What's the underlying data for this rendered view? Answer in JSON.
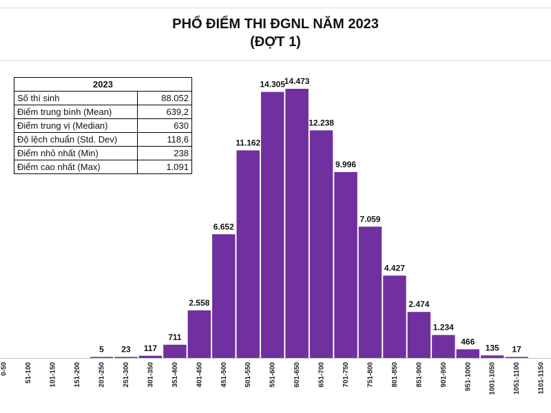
{
  "title": {
    "line1": "PHỔ ĐIỂM THI ĐGNL NĂM 2023",
    "line2": "(ĐỢT 1)"
  },
  "stats_table": {
    "header": "2023",
    "rows": [
      {
        "label": "Số thí sinh",
        "value": "88.052"
      },
      {
        "label": "Điểm trung bình (Mean)",
        "value": "639,2"
      },
      {
        "label": "Điểm trung vị (Median)",
        "value": "630"
      },
      {
        "label": "Độ lệch chuẩn (Std. Dev)",
        "value": "118,6"
      },
      {
        "label": "Điểm nhỏ nhất (Min)",
        "value": "238"
      },
      {
        "label": "Điểm cao nhất (Max)",
        "value": "1.091"
      }
    ]
  },
  "chart_data": {
    "type": "bar",
    "title": "PHỔ ĐIỂM THI ĐGNL NĂM 2023 (ĐỢT 1)",
    "categories": [
      "0-50",
      "51-100",
      "101-150",
      "151-200",
      "201-250",
      "251-300",
      "301-350",
      "351-400",
      "401-450",
      "451-500",
      "501-550",
      "551-600",
      "601-650",
      "651-700",
      "701-750",
      "751-800",
      "801-850",
      "851-900",
      "901-950",
      "951-1000",
      "1001-1050",
      "1051-1100",
      "1101-1150"
    ],
    "values": [
      0,
      0,
      0,
      0,
      5,
      23,
      117,
      711,
      2558,
      6652,
      11162,
      14305,
      14473,
      12238,
      9996,
      7059,
      4427,
      2474,
      1234,
      466,
      135,
      17,
      0
    ],
    "data_labels": [
      "",
      "",
      "",
      "",
      "5",
      "23",
      "117",
      "711",
      "2.558",
      "6.652",
      "11.162",
      "14.305",
      "14.473",
      "12.238",
      "9.996",
      "7.059",
      "4.427",
      "2.474",
      "1.234",
      "466",
      "135",
      "17",
      ""
    ],
    "ylim": [
      0,
      14473
    ],
    "xlabel": "",
    "ylabel": "",
    "grid": false,
    "bar_color": "#7030a0"
  }
}
